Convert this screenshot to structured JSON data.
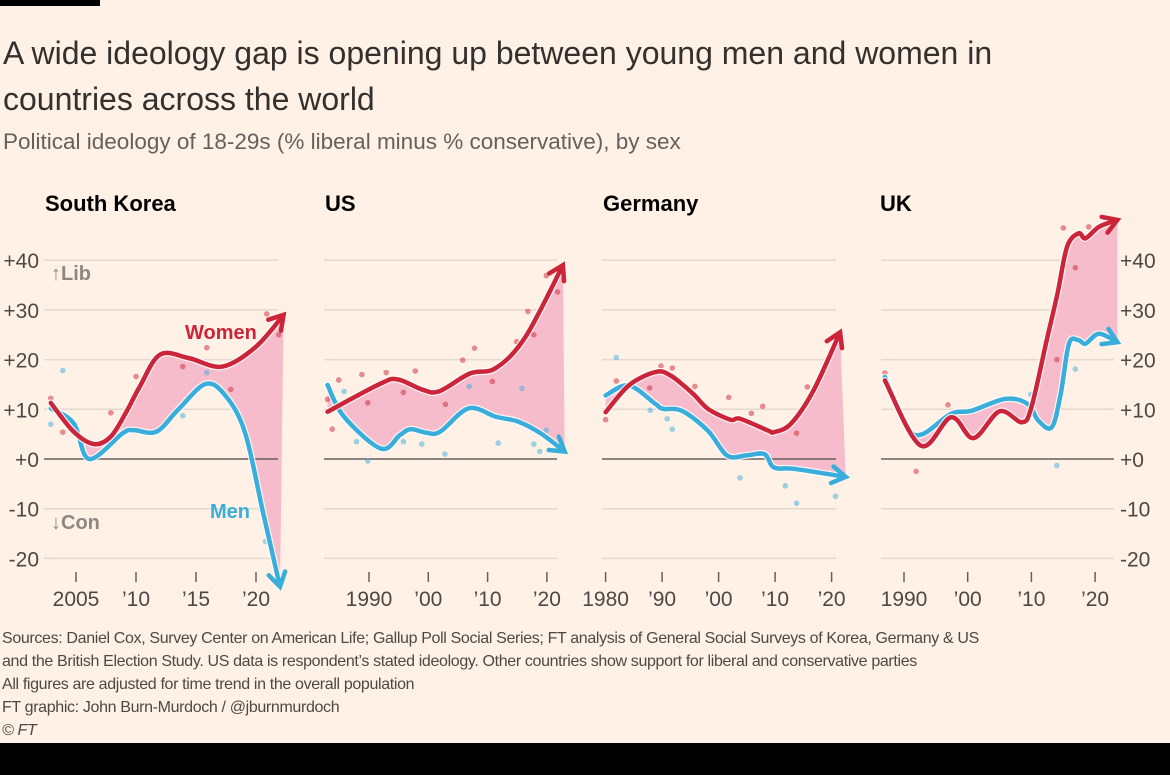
{
  "title": "A wide ideology gap is opening up between young men and women in countries across the world",
  "subtitle": "Political ideology of 18-29s (% liberal minus % conservative), by sex",
  "footer": {
    "sources_1": "Sources: Daniel Cox, Survey Center on American Life; Gallup Poll Social Series; FT analysis of General Social Surveys of Korea, Germany & US",
    "sources_2": "and the British Election Study. US data is respondent’s stated ideology. Other countries show support for liberal and conservative parties",
    "note": "All figures are adjusted for time trend in the overall population",
    "credit": "FT graphic: John Burn-Murdoch / @jburnmurdoch",
    "copyright": "© FT"
  },
  "colors": {
    "women": "#cc2438",
    "men": "#3aaedb",
    "gap_fill": "#f7bccb",
    "background": "#fff1e5",
    "grid": "#e3d9cf",
    "zero": "#66605c"
  },
  "chart_data": {
    "type": "line",
    "ylabel": "% liberal minus % conservative",
    "ylim": [
      -25,
      48
    ],
    "yticks": [
      40,
      30,
      20,
      10,
      0,
      -10,
      -20
    ],
    "ytick_labels": [
      "+40",
      "+30",
      "+20",
      "+10",
      "+0",
      "-10",
      "-20"
    ],
    "annotations": {
      "lib": "↑Lib",
      "con": "↓Con",
      "women": "Women",
      "men": "Men"
    },
    "panels": [
      {
        "name": "South Korea",
        "xticks": [
          2005,
          2010,
          2015,
          2020
        ],
        "xtick_labels": [
          "2005",
          "’10",
          "’15",
          "’20"
        ],
        "series": [
          {
            "name": "Women",
            "x": [
              2002.9,
              2004.8,
              2006.5,
              2007.9,
              2009.2,
              2010.3,
              2012.0,
              2014.4,
              2017.2,
              2020.0,
              2022.3
            ],
            "y": [
              11.3,
              5.5,
              3.0,
              4.5,
              9.5,
              14.5,
              21.0,
              20.3,
              18.6,
              22.6,
              29.0
            ],
            "points": [
              [
                2002.9,
                12.2
              ],
              [
                2003.9,
                5.4
              ],
              [
                2007.9,
                9.3
              ],
              [
                2010,
                16.6
              ],
              [
                2013.9,
                18.6
              ],
              [
                2015.9,
                22.4
              ],
              [
                2017.9,
                14
              ],
              [
                2020.9,
                29.2
              ],
              [
                2021.9,
                25
              ]
            ]
          },
          {
            "name": "Men",
            "x": [
              2002.9,
              2004.8,
              2006.1,
              2008.9,
              2009.8,
              2011.7,
              2013.5,
              2015.8,
              2017.5,
              2019.1,
              2020.6,
              2022.0
            ],
            "y": [
              10.2,
              7.2,
              0.0,
              5.2,
              5.8,
              5.5,
              9.9,
              15.1,
              12.6,
              5.2,
              -10.9,
              -25.7
            ],
            "points": [
              [
                2002.9,
                7
              ],
              [
                2003.9,
                17.8
              ],
              [
                2013.9,
                8.7
              ],
              [
                2015.9,
                17.4
              ],
              [
                2020.8,
                -16.6
              ]
            ]
          }
        ]
      },
      {
        "name": "US",
        "xticks": [
          1990,
          2000,
          2010,
          2020
        ],
        "xtick_labels": [
          "1990",
          "’00",
          "’10",
          "’20"
        ],
        "series": [
          {
            "name": "Women",
            "x": [
              1983.0,
              1992.0,
              1994.9,
              1998.9,
              2001.8,
              2007.0,
              2011.4,
              2016.4,
              2022.7
            ],
            "y": [
              9.5,
              15.2,
              16.0,
              14.0,
              13.6,
              17.2,
              18.3,
              24.6,
              39.0
            ],
            "points": [
              [
                1983,
                12
              ],
              [
                1983.8,
                6
              ],
              [
                1984.9,
                15.9
              ],
              [
                1988.8,
                17
              ],
              [
                1989.8,
                11.3
              ],
              [
                1992.9,
                17.4
              ],
              [
                1995.8,
                13.4
              ],
              [
                1997.8,
                17.7
              ],
              [
                2002.9,
                11
              ],
              [
                2005.8,
                19.9
              ],
              [
                2007.8,
                22.3
              ],
              [
                2010.8,
                15.6
              ],
              [
                2014.9,
                23.6
              ],
              [
                2016.8,
                29.7
              ],
              [
                2017.8,
                25
              ],
              [
                2019.9,
                36.9
              ],
              [
                2021.8,
                33.6
              ]
            ]
          },
          {
            "name": "Men",
            "x": [
              1983.0,
              1985.8,
              1992.0,
              1995.2,
              1997.0,
              1999.6,
              2002.0,
              2006.8,
              2011.4,
              2015.2,
              2018.9,
              2023.0
            ],
            "y": [
              14.9,
              8.5,
              2.1,
              4.8,
              6.0,
              5.3,
              5.5,
              10.2,
              8.5,
              7.5,
              5.2,
              1.5
            ],
            "points": [
              [
                1985.8,
                13.6
              ],
              [
                1987.9,
                3.5
              ],
              [
                1989.8,
                -0.4
              ],
              [
                1995.8,
                3.5
              ],
              [
                1998.9,
                3
              ],
              [
                2002.8,
                1
              ],
              [
                2006.9,
                14.6
              ],
              [
                2011.8,
                3.2
              ],
              [
                2015.8,
                14.2
              ],
              [
                2017.8,
                3
              ],
              [
                2018.8,
                1.5
              ],
              [
                2019.9,
                5.8
              ]
            ]
          }
        ]
      },
      {
        "name": "Germany",
        "xticks": [
          1980,
          1990,
          2000,
          2010,
          2020
        ],
        "xtick_labels": [
          "1980",
          "’90",
          "’00",
          "’10",
          "’20"
        ],
        "series": [
          {
            "name": "Women",
            "x": [
              1980.0,
              1984.1,
              1988.8,
              1991.5,
              1995.5,
              1998.1,
              2002.1,
              2003.8,
              2008.8,
              2009.8,
              2012.8,
              2016.8,
              2021.5
            ],
            "y": [
              9.4,
              14.8,
              17.5,
              16.8,
              13.1,
              10.1,
              7.9,
              8.1,
              5.7,
              5.4,
              7.1,
              13.8,
              25.5
            ],
            "points": [
              [
                1980,
                7.9
              ],
              [
                1981.9,
                15.7
              ],
              [
                1987.8,
                14.3
              ],
              [
                1989.8,
                18.7
              ],
              [
                1991.8,
                18.3
              ],
              [
                1995.8,
                14.6
              ],
              [
                2001.8,
                12.4
              ],
              [
                2005.8,
                9.2
              ],
              [
                2007.8,
                10.6
              ],
              [
                2013.8,
                5.2
              ],
              [
                2015.7,
                14.5
              ]
            ]
          },
          {
            "name": "Men",
            "x": [
              1980.0,
              1984.1,
              1988.8,
              1990.1,
              1993.5,
              1998.1,
              2001.5,
              2004.8,
              2008.1,
              2009.8,
              2013.5,
              2022.5
            ],
            "y": [
              12.8,
              14.8,
              11.1,
              10.1,
              9.7,
              5.7,
              0.7,
              0.7,
              1.0,
              -1.7,
              -2.0,
              -3.6
            ],
            "points": [
              [
                1981.9,
                20.4
              ],
              [
                1987.9,
                9.8
              ],
              [
                1990.9,
                8.1
              ],
              [
                1991.8,
                6
              ],
              [
                2003.8,
                -3.8
              ],
              [
                2011.8,
                -5.4
              ],
              [
                2013.8,
                -8.9
              ],
              [
                2020.7,
                -7.5
              ]
            ]
          }
        ]
      },
      {
        "name": "UK",
        "xticks": [
          1990,
          2000,
          2010,
          2020
        ],
        "xtick_labels": [
          "1990",
          "’00",
          "’10",
          "’20"
        ],
        "series": [
          {
            "name": "Women",
            "x": [
              1987.0,
              1992.6,
              1997.4,
              2000.9,
              2005.0,
              2008.5,
              2010.0,
              2012.4,
              2014.1,
              2015.6,
              2017.4,
              2018.5,
              2020.6,
              2023.5
            ],
            "y": [
              15.8,
              2.7,
              8.4,
              4.2,
              9.6,
              7.4,
              10.4,
              23.9,
              33.3,
              42.7,
              45.4,
              44.4,
              46.7,
              48.1
            ],
            "points": [
              [
                1987,
                17.3
              ],
              [
                1991.9,
                -2.5
              ],
              [
                1996.9,
                10.9
              ],
              [
                2014,
                20
              ],
              [
                2015,
                46.5
              ],
              [
                2016.9,
                38.5
              ],
              [
                2019,
                46.7
              ]
            ]
          },
          {
            "name": "Men",
            "x": [
              1987.0,
              1990.6,
              1992.9,
              1997.4,
              2000.6,
              2005.9,
              2009.4,
              2011.1,
              2013.2,
              2014.6,
              2015.9,
              2017.4,
              2018.5,
              2020.6,
              2023.5
            ],
            "y": [
              16.5,
              6.4,
              5.0,
              9.1,
              9.7,
              12.1,
              11.1,
              7.7,
              6.4,
              13.1,
              23.2,
              23.9,
              23.2,
              25.2,
              23.5
            ],
            "points": [
              [
                2009.9,
                13
              ],
              [
                2014,
                -1.3
              ],
              [
                2016.9,
                18.1
              ]
            ]
          }
        ]
      }
    ]
  }
}
